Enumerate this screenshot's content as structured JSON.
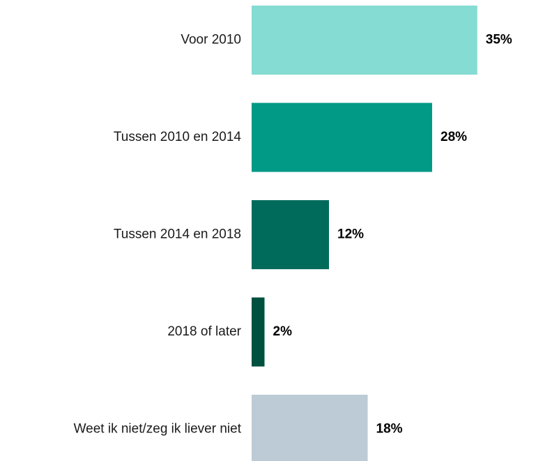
{
  "chart_data": {
    "type": "barh",
    "categories": [
      "Voor 2010",
      "Tussen 2010 en 2014",
      "Tussen 2014 en 2018",
      "2018 of later",
      "Weet ik niet/zeg ik liever niet"
    ],
    "values": [
      35,
      28,
      12,
      2,
      18
    ],
    "value_labels": [
      "35%",
      "28%",
      "12%",
      "2%",
      "18%"
    ],
    "colors": [
      "#84dcd3",
      "#009a87",
      "#006b5b",
      "#00503f",
      "#bccbd5"
    ]
  }
}
